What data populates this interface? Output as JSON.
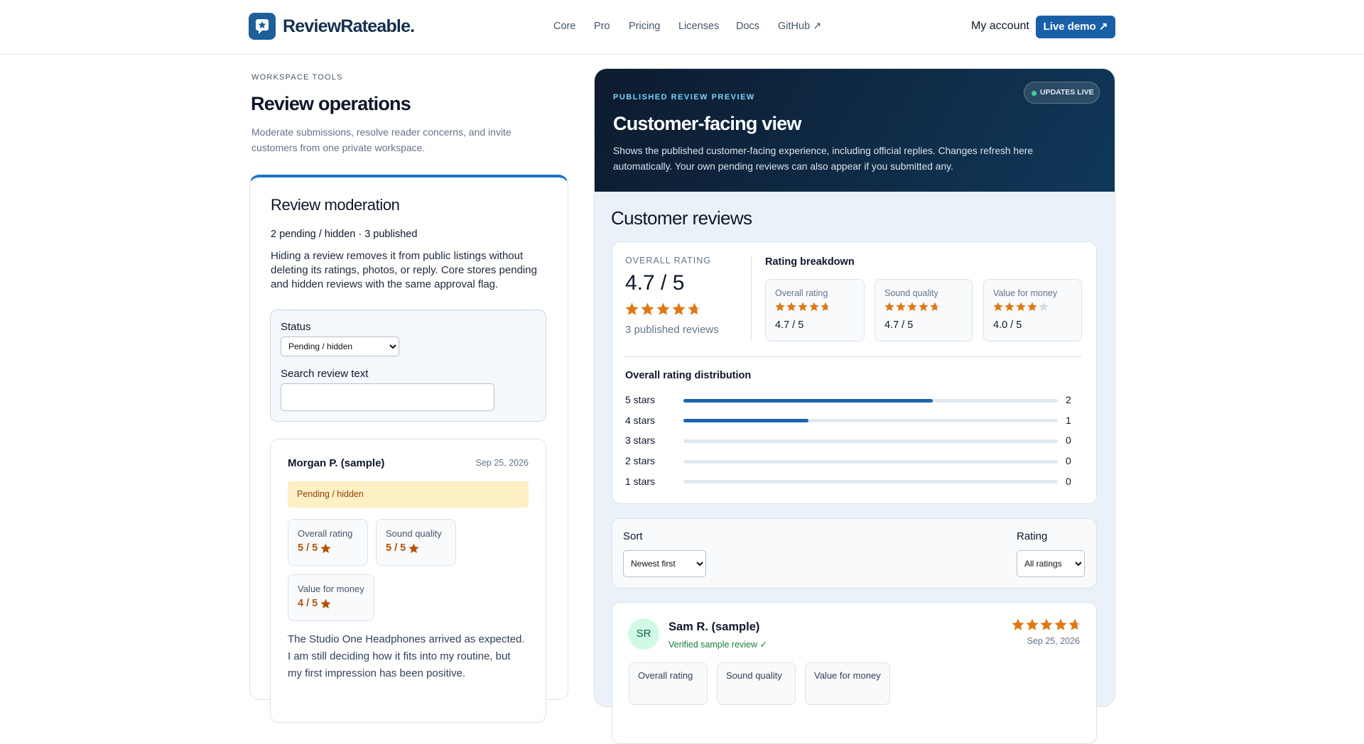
{
  "header": {
    "brand": "ReviewRateable.",
    "nav": [
      "Core",
      "Pro",
      "Pricing",
      "Licenses",
      "Docs",
      "GitHub ↗"
    ],
    "account": "My account",
    "cta": "Live demo ↗"
  },
  "workspace": {
    "eyebrow": "WORKSPACE TOOLS",
    "title": "Review operations",
    "description": "Moderate submissions, resolve reader concerns, and invite customers from one private workspace.",
    "moderation": {
      "title": "Review moderation",
      "summary": "2 pending / hidden · 3 published",
      "note": "Hiding a review removes it from public listings without deleting its ratings, photos, or reply. Core stores pending and hidden reviews with the same approval flag.",
      "filters": {
        "status_label": "Status",
        "status_value": "Pending / hidden",
        "search_label": "Search review text"
      },
      "review": {
        "author": "Morgan P. (sample)",
        "date": "Sep 25, 2026",
        "status": "Pending / hidden",
        "ratings": [
          {
            "label": "Overall rating",
            "value": "5 / 5"
          },
          {
            "label": "Sound quality",
            "value": "5 / 5"
          },
          {
            "label": "Value for money",
            "value": "4 / 5"
          }
        ],
        "text": "The Studio One Headphones arrived as expected. I am still deciding how it fits into my routine, but my first impression has been positive."
      }
    }
  },
  "preview": {
    "eyebrow": "PUBLISHED REVIEW PREVIEW",
    "badge": "UPDATES LIVE",
    "title": "Customer-facing view",
    "description": "Shows the published customer-facing experience, including official replies. Changes refresh here automatically. Your own pending reviews can also appear if you submitted any.",
    "heading": "Customer reviews",
    "summary": {
      "overall_label": "OVERALL RATING",
      "overall": {
        "value": 4.7,
        "label": "4.7 / 5"
      },
      "count_text": "3 published reviews",
      "breakdown_title": "Rating breakdown",
      "breakdown": [
        {
          "label": "Overall rating",
          "rating": {
            "value": 4.7,
            "label": "4.7 / 5"
          }
        },
        {
          "label": "Sound quality",
          "rating": {
            "value": 4.7,
            "label": "4.7 / 5"
          }
        },
        {
          "label": "Value for money",
          "rating": {
            "value": 4.0,
            "label": "4.0 / 5"
          }
        }
      ],
      "distribution_title": "Overall rating distribution",
      "distribution": [
        {
          "label": "5 stars",
          "count": 2
        },
        {
          "label": "4 stars",
          "count": 1
        },
        {
          "label": "3 stars",
          "count": 0
        },
        {
          "label": "2 stars",
          "count": 0
        },
        {
          "label": "1 stars",
          "count": 0
        }
      ]
    },
    "controls": {
      "sort_label": "Sort",
      "sort_value": "Newest first",
      "rating_label": "Rating",
      "rating_value": "All ratings"
    },
    "review": {
      "initials": "SR",
      "author": "Sam R. (sample)",
      "verified": "Verified sample review ✓",
      "rating": 4.7,
      "date": "Sep 25, 2026",
      "ratings": [
        "Overall rating",
        "Sound quality",
        "Value for money"
      ]
    }
  }
}
